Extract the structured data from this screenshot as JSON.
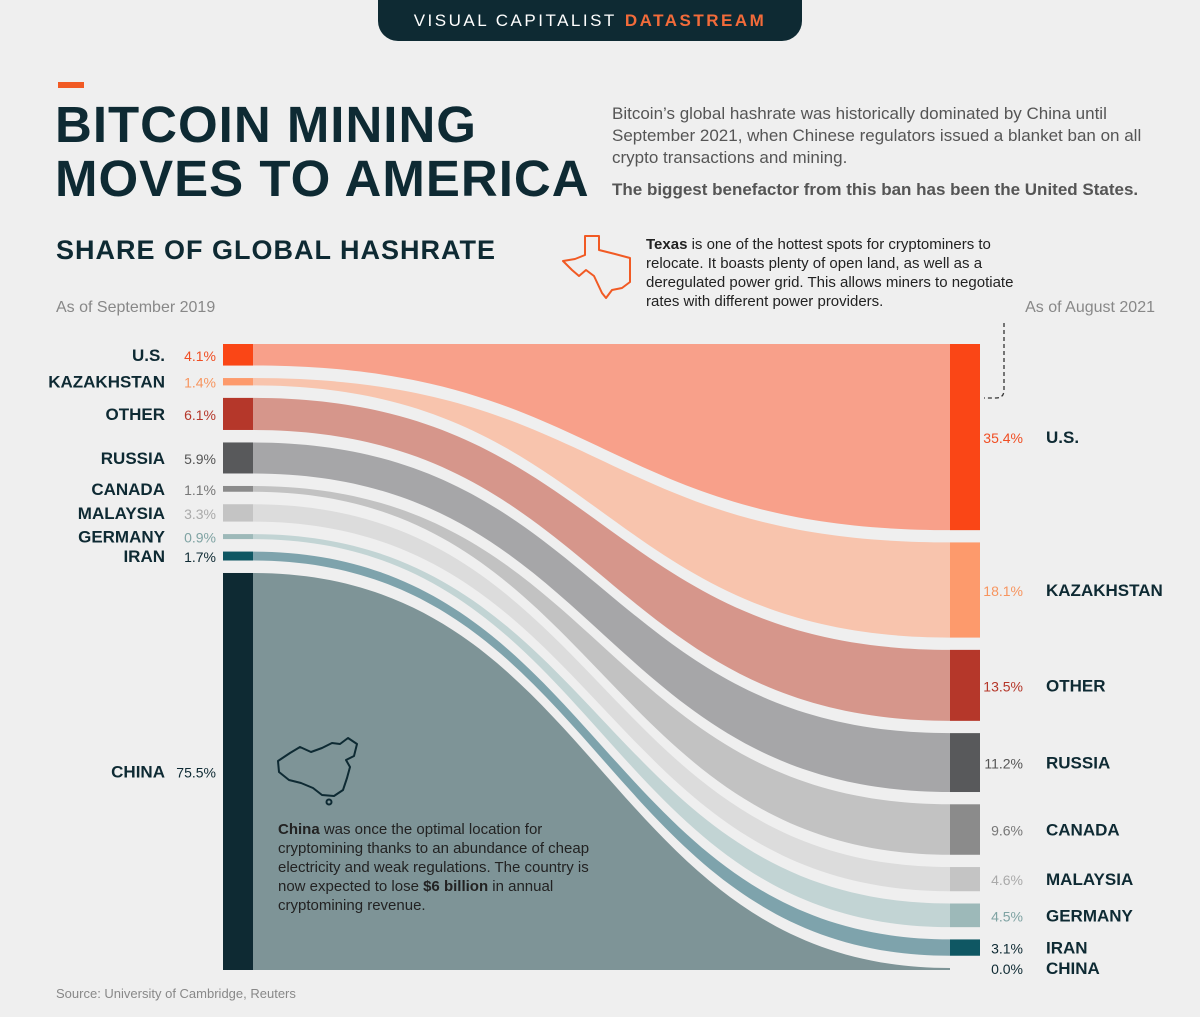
{
  "header": {
    "brand": "VISUAL CAPITALIST",
    "brand_accent": "DATASTREAM"
  },
  "title_line1": "BITCOIN MINING",
  "title_line2": "MOVES TO AMERICA",
  "intro_text": "Bitcoin’s global hashrate was historically dominated by China until September 2021, when Chinese regulators issued a blanket ban on all crypto transactions and mining.",
  "intro_bold": "The biggest benefactor from this ban has been the United States.",
  "subtitle": "SHARE OF GLOBAL HASHRATE",
  "as_of_left": "As of September 2019",
  "as_of_right": "As of August 2021",
  "texas_note": {
    "bold": "Texas",
    "text": " is one of the hottest spots for cryptominers to relocate. It boasts plenty of open land, as well as a deregulated power grid. This allows miners to negotiate rates with different power providers."
  },
  "china_note": {
    "bold": "China",
    "text1": " was once the optimal location for cryptomining thanks to an abundance of cheap electricity and weak regulations. The country is now expected to lose ",
    "bold2": "$6 billion",
    "text2": " in annual cryptomining revenue."
  },
  "source": "Source: University of Cambridge, Reuters",
  "icons": [
    "texas-outline-icon",
    "china-outline-icon"
  ],
  "chart_data": {
    "type": "sankey",
    "left_label": "As of September 2019",
    "right_label": "As of August 2021",
    "series": [
      {
        "name": "U.S.",
        "left_label": "4.1%",
        "right_label": "35.4%",
        "left": 4.1,
        "right": 35.4,
        "color": "#fa4616",
        "flow": "#f8a08a",
        "label_color": "#f04e23"
      },
      {
        "name": "KAZAKHSTAN",
        "left_label": "1.4%",
        "right_label": "18.1%",
        "left": 1.4,
        "right": 18.1,
        "color": "#fd9a6c",
        "flow": "#f8c4ad",
        "label_color": "#f7955f"
      },
      {
        "name": "OTHER",
        "left_label": "6.1%",
        "right_label": "13.5%",
        "left": 6.1,
        "right": 13.5,
        "color": "#b5372a",
        "flow": "#d6968b",
        "label_color": "#b5372a"
      },
      {
        "name": "RUSSIA",
        "left_label": "5.9%",
        "right_label": "11.2%",
        "left": 5.9,
        "right": 11.2,
        "color": "#58595b",
        "flow": "#a6a6a8",
        "label_color": "#555555"
      },
      {
        "name": "CANADA",
        "left_label": "1.1%",
        "right_label": "9.6%",
        "left": 1.1,
        "right": 9.6,
        "color": "#8b8b8b",
        "flow": "#c2c2c2",
        "label_color": "#777777"
      },
      {
        "name": "MALAYSIA",
        "left_label": "3.3%",
        "right_label": "4.6%",
        "left": 3.3,
        "right": 4.6,
        "color": "#c4c4c4",
        "flow": "#dcdcdc",
        "label_color": "#aaaaaa"
      },
      {
        "name": "GERMANY",
        "left_label": "0.9%",
        "right_label": "4.5%",
        "left": 0.9,
        "right": 4.5,
        "color": "#9db9b9",
        "flow": "#c2d4d4",
        "label_color": "#7fa3a3"
      },
      {
        "name": "IRAN",
        "left_label": "1.7%",
        "right_label": "3.1%",
        "left": 1.7,
        "right": 3.1,
        "color": "#0f5763",
        "flow": "#7ea3ac",
        "label_color": "#0e2a33"
      },
      {
        "name": "CHINA",
        "left_label": "75.5%",
        "right_label": "0.0%",
        "left": 75.5,
        "right": 0.0,
        "color": "#0e2a33",
        "flow": "#7e9497",
        "label_color": "#0e2a33"
      }
    ]
  }
}
